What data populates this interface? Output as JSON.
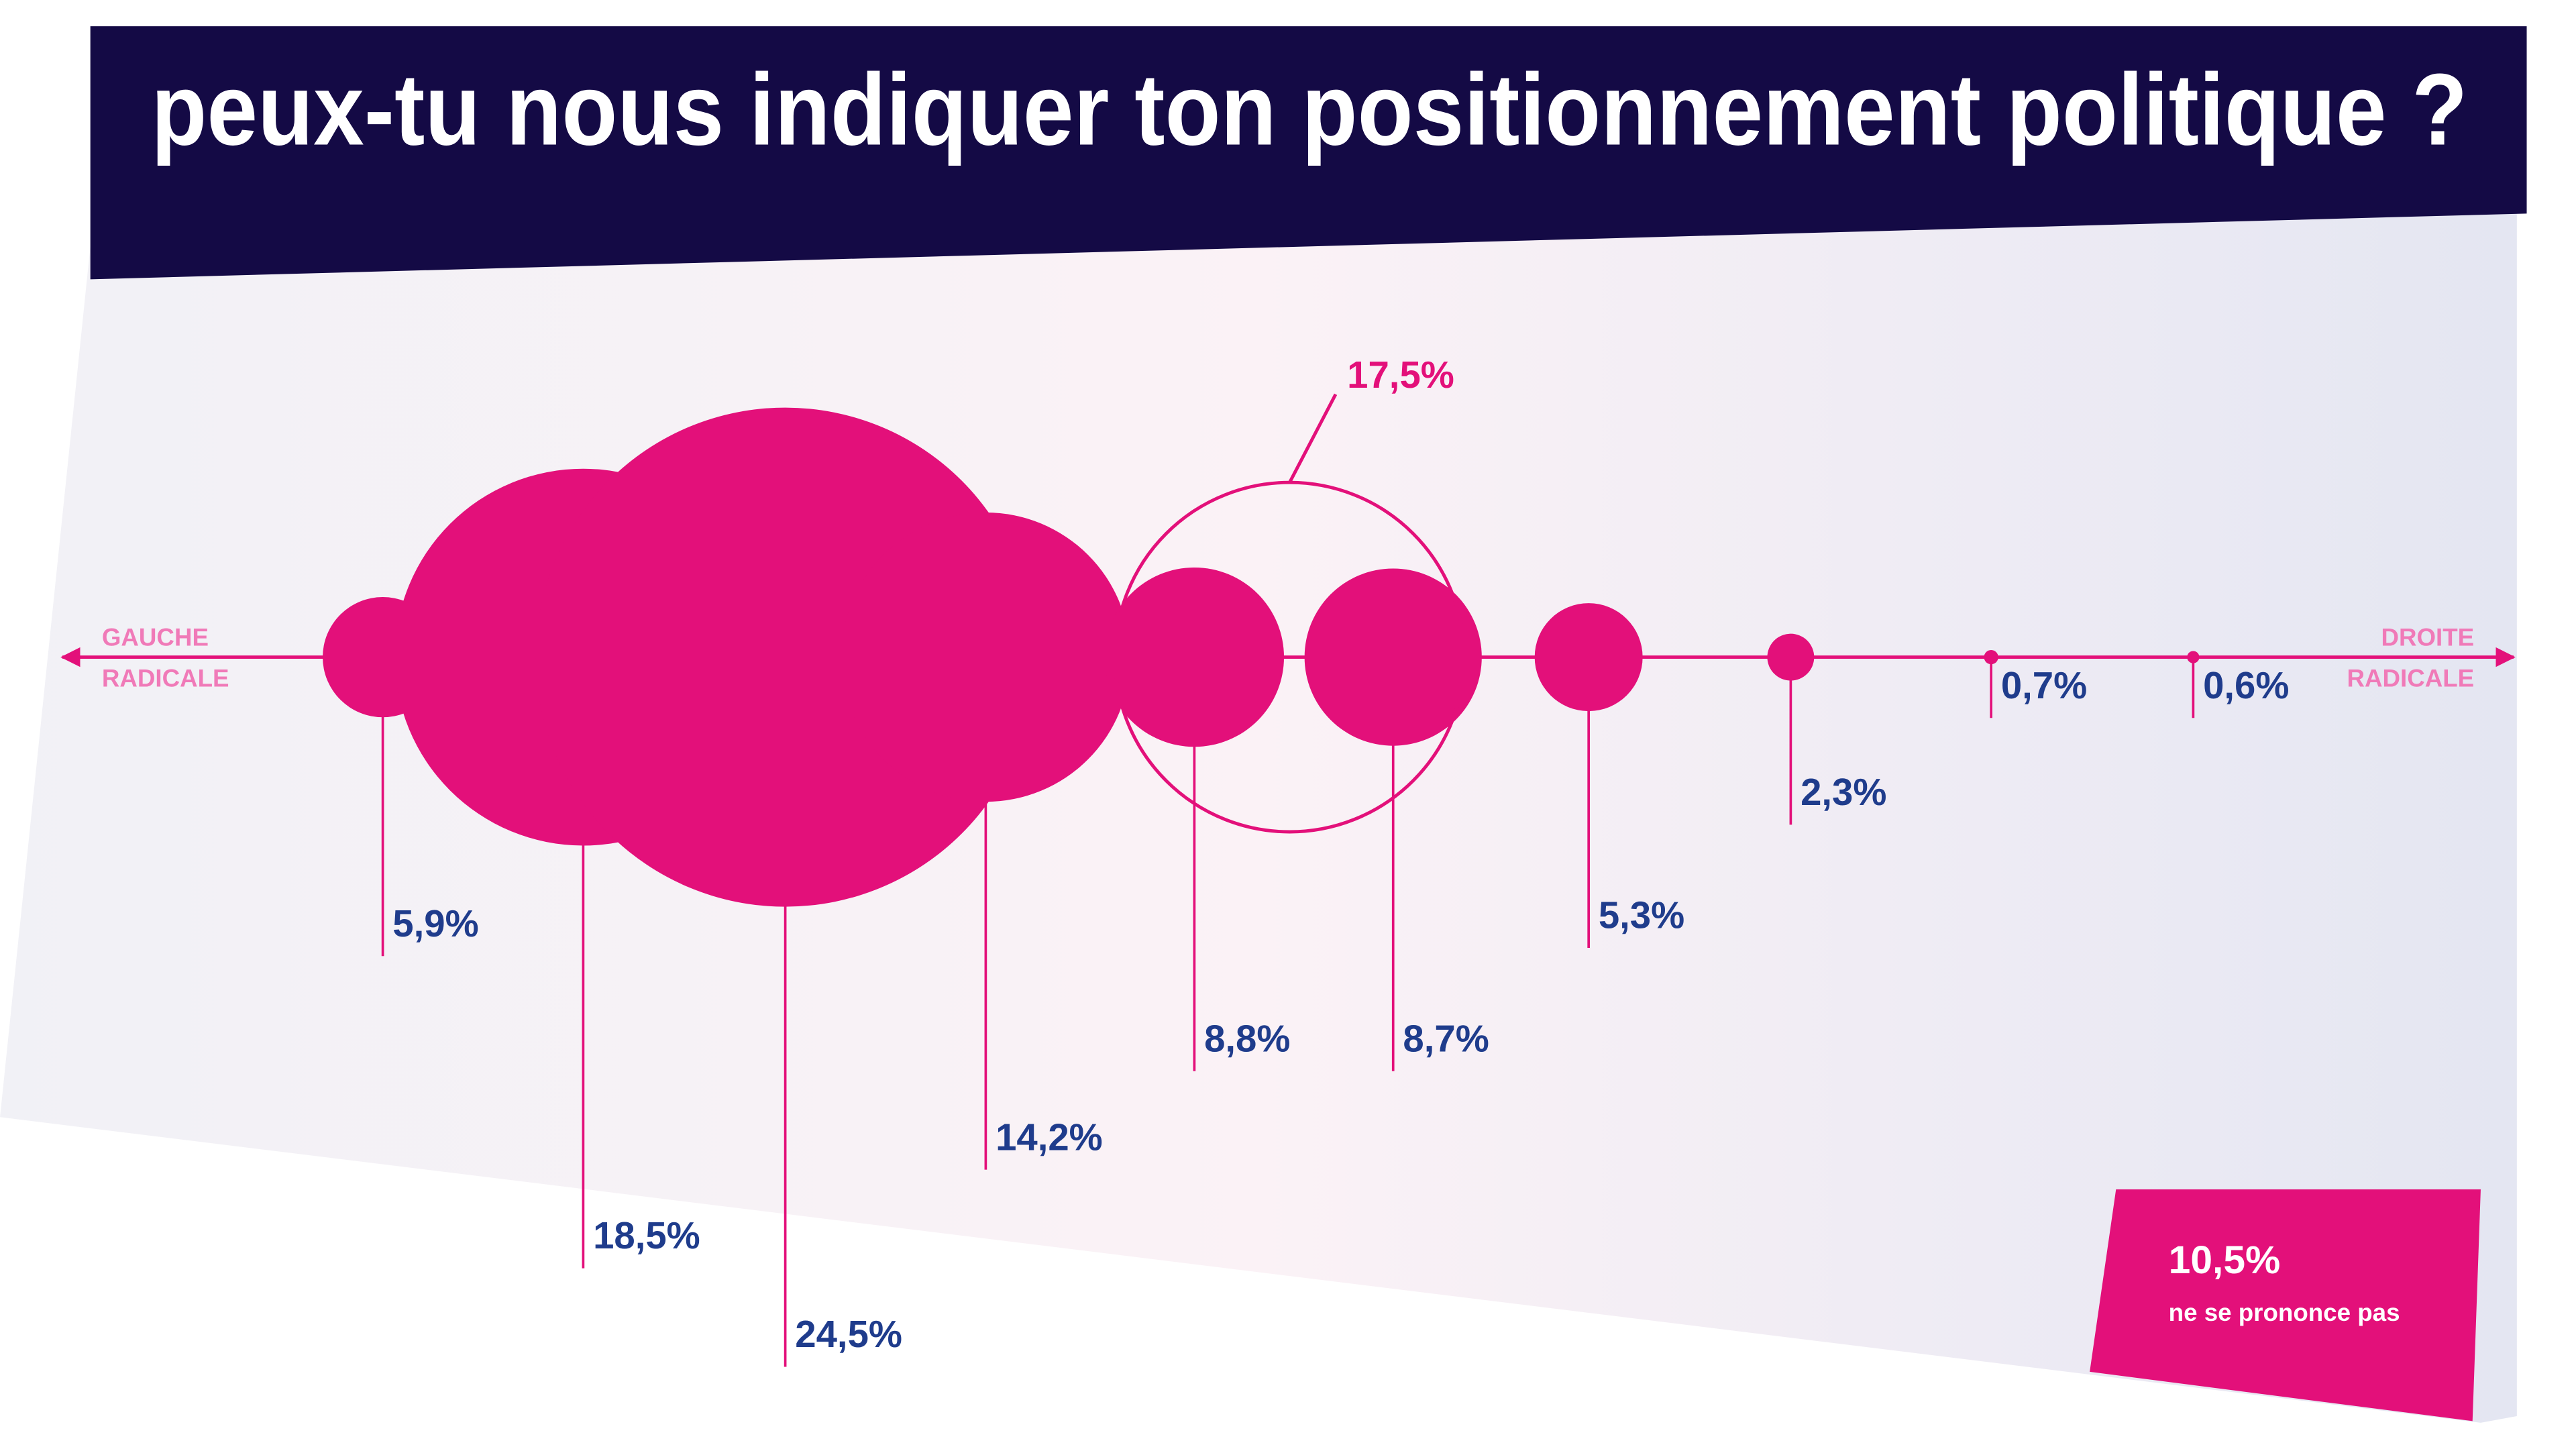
{
  "chart_data": {
    "type": "bubble",
    "title": "peux-tu nous indiquer ton positionnement politique ?",
    "left_label": [
      "GAUCHE",
      "RADICALE"
    ],
    "right_label": [
      "DROITE",
      "RADICALE"
    ],
    "values": [
      5.9,
      18.5,
      24.5,
      14.2,
      8.8,
      8.7,
      5.3,
      2.3,
      0.7,
      0.6
    ],
    "value_labels": [
      "5,9%",
      "18,5%",
      "24,5%",
      "14,2%",
      "8,8%",
      "8,7%",
      "5,3%",
      "2,3%",
      "0,7%",
      "0,6%"
    ],
    "color": "#e3107a",
    "label_color": "#1f3c8c",
    "group": {
      "value": 17.5,
      "label": "17,5%"
    },
    "no_answer": {
      "value": 10.5,
      "label": "10,5%",
      "text": "ne se prononce pas"
    }
  }
}
